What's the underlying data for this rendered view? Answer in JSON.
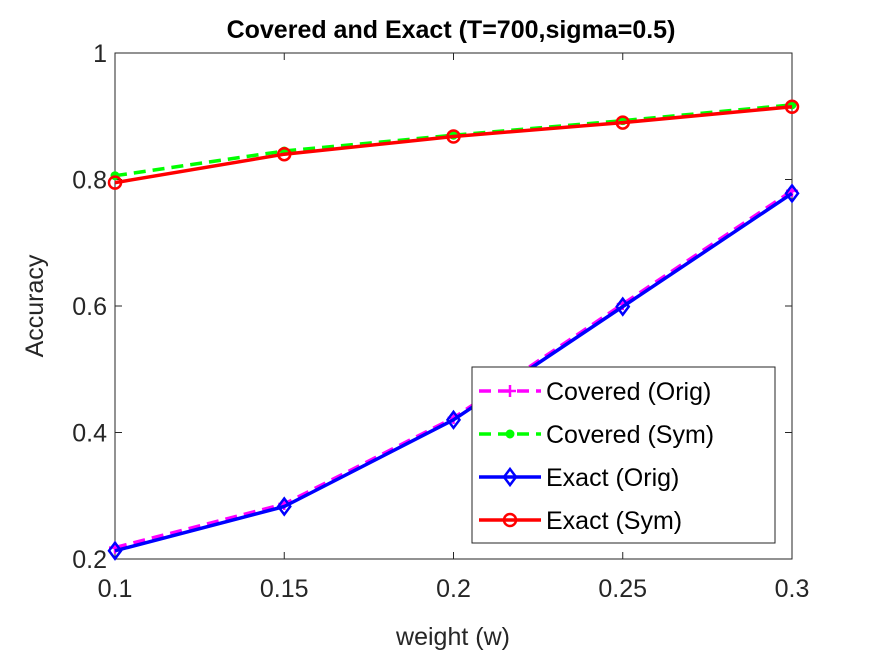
{
  "chart_data": {
    "type": "line",
    "title": "Covered and Exact (T=700,sigma=0.5)",
    "xlabel": "weight (w)",
    "ylabel": "Accuracy",
    "x": [
      0.1,
      0.15,
      0.2,
      0.25,
      0.3
    ],
    "xlim": [
      0.1,
      0.3
    ],
    "ylim": [
      0.2,
      1.0
    ],
    "x_ticks": [
      "0.1",
      "0.15",
      "0.2",
      "0.25",
      "0.3"
    ],
    "y_ticks": [
      "0.2",
      "0.4",
      "0.6",
      "0.8",
      "1"
    ],
    "grid": false,
    "legend_position": "bottom-right",
    "series": [
      {
        "name": "Covered (Orig)",
        "values": [
          0.218,
          0.287,
          0.423,
          0.603,
          0.782
        ],
        "color": "#ff00ff",
        "line": "dashed",
        "marker": "plus"
      },
      {
        "name": "Covered (Sym)",
        "values": [
          0.806,
          0.845,
          0.87,
          0.893,
          0.918
        ],
        "color": "#00ff00",
        "line": "dashed",
        "marker": "dot"
      },
      {
        "name": "Exact (Orig)",
        "values": [
          0.213,
          0.283,
          0.42,
          0.599,
          0.778
        ],
        "color": "#0000ff",
        "line": "solid",
        "marker": "diamond"
      },
      {
        "name": "Exact (Sym)",
        "values": [
          0.795,
          0.84,
          0.868,
          0.89,
          0.915
        ],
        "color": "#ff0000",
        "line": "solid",
        "marker": "circle"
      }
    ]
  }
}
